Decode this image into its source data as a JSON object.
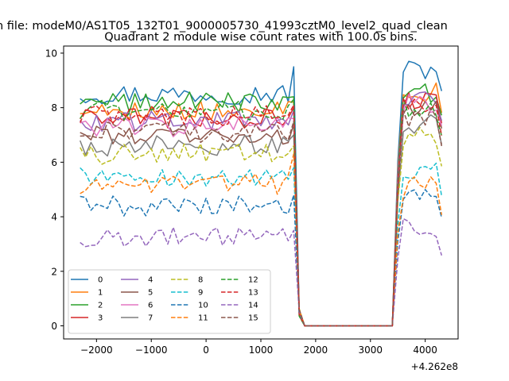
{
  "chart_data": {
    "type": "line",
    "suptitle": "n file: modeM0/AS1T05_132T01_9000005730_41993cztM0_level2_quad_clean",
    "title": "Quadrant 2 module wise count rates with 100.0s bins.",
    "xlabel": "",
    "ylabel": "",
    "xlim": [
      -2600,
      4600
    ],
    "ylim": [
      -0.48,
      10.26
    ],
    "x_ticks": [
      -2000,
      -1000,
      0,
      1000,
      2000,
      3000,
      4000
    ],
    "x_tick_labels": [
      "−2000",
      "−1000",
      "0",
      "1000",
      "2000",
      "3000",
      "4000"
    ],
    "y_ticks": [
      0,
      2,
      4,
      6,
      8,
      10
    ],
    "y_tick_labels": [
      "0",
      "2",
      "4",
      "6",
      "8",
      "10"
    ],
    "x_offset_label": "+4.262e8",
    "x_range": [
      -2300,
      4300
    ],
    "x_step": 100,
    "gap_start": 1800,
    "gap_end": 3400,
    "legend": {
      "location": "lower left",
      "ncol": 4
    },
    "series": [
      {
        "name": "0",
        "color": "#1f77b4",
        "dash": "solid",
        "mean": 8.5,
        "spike": 9.5,
        "post": 9.4
      },
      {
        "name": "1",
        "color": "#ff7f0e",
        "dash": "solid",
        "mean": 7.9,
        "spike": 8.2,
        "post": 8.6
      },
      {
        "name": "2",
        "color": "#2ca02c",
        "dash": "solid",
        "mean": 8.2,
        "spike": 8.4,
        "post": 8.5
      },
      {
        "name": "3",
        "color": "#d62728",
        "dash": "solid",
        "mean": 7.6,
        "spike": 8.0,
        "post": 8.2
      },
      {
        "name": "4",
        "color": "#9467bd",
        "dash": "solid",
        "mean": 7.5,
        "spike": 7.9,
        "post": 8.3
      },
      {
        "name": "5",
        "color": "#8c564b",
        "dash": "solid",
        "mean": 7.0,
        "spike": 7.4,
        "post": 8.0
      },
      {
        "name": "6",
        "color": "#e377c2",
        "dash": "solid",
        "mean": 7.3,
        "spike": 7.6,
        "post": 8.1
      },
      {
        "name": "7",
        "color": "#7f7f7f",
        "dash": "solid",
        "mean": 6.6,
        "spike": 7.0,
        "post": 7.4
      },
      {
        "name": "8",
        "color": "#bcbd22",
        "dash": "dashed",
        "mean": 6.3,
        "spike": 6.6,
        "post": 6.9
      },
      {
        "name": "9",
        "color": "#17becf",
        "dash": "dashed",
        "mean": 5.5,
        "spike": 5.8,
        "post": 5.8
      },
      {
        "name": "10",
        "color": "#1f77b4",
        "dash": "dashed",
        "mean": 4.4,
        "spike": 4.8,
        "post": 5.0
      },
      {
        "name": "11",
        "color": "#ff7f0e",
        "dash": "dashed",
        "mean": 5.2,
        "spike": 6.3,
        "post": 5.1
      },
      {
        "name": "12",
        "color": "#2ca02c",
        "dash": "dashed",
        "mean": 7.9,
        "spike": 8.3,
        "post": 8.0
      },
      {
        "name": "13",
        "color": "#d62728",
        "dash": "dashed",
        "mean": 7.7,
        "spike": 8.1,
        "post": 8.0
      },
      {
        "name": "14",
        "color": "#9467bd",
        "dash": "dashed",
        "mean": 3.25,
        "spike": 3.5,
        "post": 3.6
      },
      {
        "name": "15",
        "color": "#8c564b",
        "dash": "dashed",
        "mean": 7.1,
        "spike": 7.5,
        "post": 7.6
      }
    ]
  }
}
